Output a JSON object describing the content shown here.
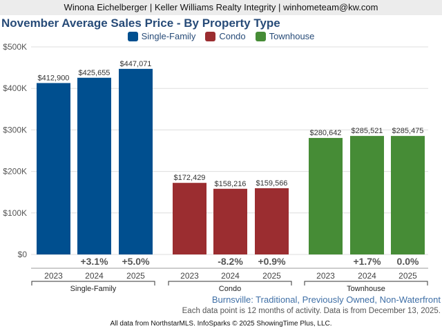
{
  "header": "Winona Eichelberger | Keller Williams Realty Integrity | winhometeam@kw.com",
  "subtitle": "Burnsville: Traditional, Previously Owned, Non-Waterfront",
  "note": "Each data point is 12 months of activity. Data is from December 13, 2025.",
  "footer": "All data from NorthstarMLS. InfoSparks © 2025 ShowingTime Plus, LLC.",
  "chart_data": {
    "type": "bar",
    "title": "November Average Sales Price - By Property Type",
    "ylim": [
      0,
      500000
    ],
    "yticks": [
      0,
      100000,
      200000,
      300000,
      400000,
      500000
    ],
    "ytick_labels": [
      "$0",
      "$100K",
      "$200K",
      "$300K",
      "$400K",
      "$500K"
    ],
    "legend_position": "top-center",
    "categories": [
      "2023",
      "2024",
      "2025"
    ],
    "series": [
      {
        "name": "Single-Family",
        "color": "#004f8f",
        "values": [
          412900,
          425655,
          447071
        ],
        "labels": [
          "$412,900",
          "$425,655",
          "$447,071"
        ],
        "changes": [
          "",
          "+3.1%",
          "+5.0%"
        ]
      },
      {
        "name": "Condo",
        "color": "#9b2d30",
        "values": [
          172429,
          158216,
          159566
        ],
        "labels": [
          "$172,429",
          "$158,216",
          "$159,566"
        ],
        "changes": [
          "",
          "-8.2%",
          "+0.9%"
        ]
      },
      {
        "name": "Townhouse",
        "color": "#468c36",
        "values": [
          280642,
          285521,
          285475
        ],
        "labels": [
          "$280,642",
          "$285,521",
          "$285,475"
        ],
        "changes": [
          "",
          "+1.7%",
          "0.0%"
        ]
      }
    ]
  }
}
